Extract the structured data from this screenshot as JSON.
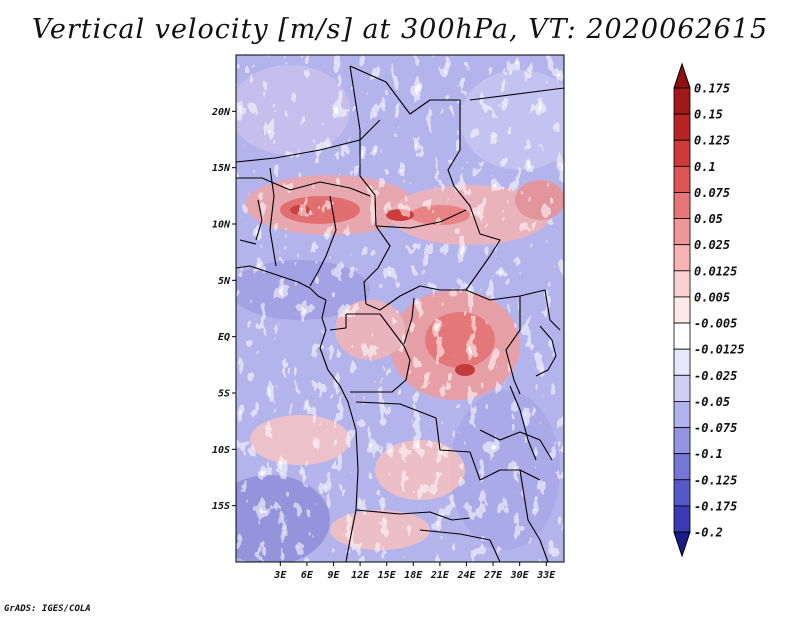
{
  "title": "Vertical velocity [m/s] at 300hPa, VT: 2020062615",
  "footer": "GrADS: IGES/COLA",
  "map": {
    "lon_range": [
      -2,
      35
    ],
    "lat_range": [
      -20,
      25
    ],
    "lat_ticks": [
      {
        "value": 20,
        "label": "20N"
      },
      {
        "value": 15,
        "label": "15N"
      },
      {
        "value": 10,
        "label": "10N"
      },
      {
        "value": 5,
        "label": "5N"
      },
      {
        "value": 0,
        "label": "EQ"
      },
      {
        "value": -5,
        "label": "5S"
      },
      {
        "value": -10,
        "label": "10S"
      },
      {
        "value": -15,
        "label": "15S"
      }
    ],
    "lon_ticks": [
      {
        "value": 3,
        "label": "3E"
      },
      {
        "value": 6,
        "label": "6E"
      },
      {
        "value": 9,
        "label": "9E"
      },
      {
        "value": 12,
        "label": "12E"
      },
      {
        "value": 15,
        "label": "15E"
      },
      {
        "value": 18,
        "label": "18E"
      },
      {
        "value": 21,
        "label": "21E"
      },
      {
        "value": 24,
        "label": "24E"
      },
      {
        "value": 27,
        "label": "27E"
      },
      {
        "value": 30,
        "label": "30E"
      },
      {
        "value": 33,
        "label": "33E"
      }
    ]
  },
  "colorbar": {
    "levels": [
      {
        "label": "0.175",
        "color": "#a01818"
      },
      {
        "label": "0.15",
        "color": "#b82424"
      },
      {
        "label": "0.125",
        "color": "#cc3a3a"
      },
      {
        "label": "0.1",
        "color": "#dc5656"
      },
      {
        "label": "0.075",
        "color": "#e87676"
      },
      {
        "label": "0.05",
        "color": "#f09696"
      },
      {
        "label": "0.025",
        "color": "#f6b4b4"
      },
      {
        "label": "0.0125",
        "color": "#fad0d0"
      },
      {
        "label": "0.005",
        "color": "#fde8e8"
      },
      {
        "label": "-0.005",
        "color": "#ffffff"
      },
      {
        "label": "-0.0125",
        "color": "#e8e8fc"
      },
      {
        "label": "-0.025",
        "color": "#cfcff6"
      },
      {
        "label": "-0.05",
        "color": "#b2b2ee"
      },
      {
        "label": "-0.075",
        "color": "#9494e4"
      },
      {
        "label": "-0.1",
        "color": "#7676d8"
      },
      {
        "label": "-0.125",
        "color": "#5858c8"
      },
      {
        "label": "-0.175",
        "color": "#3a3ab4"
      },
      {
        "label": "-0.2",
        "color": "#24249c"
      }
    ],
    "top_cap_color": "#8e1010",
    "bottom_cap_color": "#1a1a8a"
  }
}
